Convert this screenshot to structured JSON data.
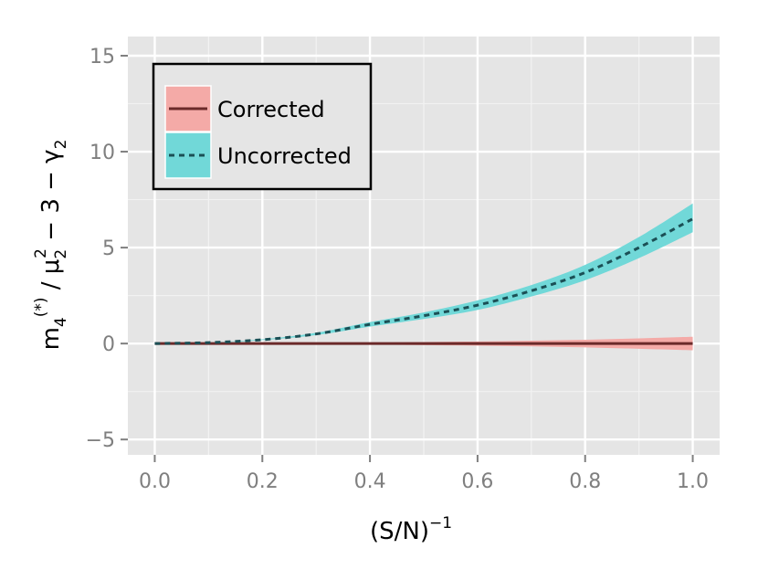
{
  "chart_data": {
    "type": "line",
    "title": "",
    "xlabel": "(S/N)",
    "xlabel_sup": "−1",
    "ylabel": {
      "m": "m",
      "m_sub": "4",
      "m_sup": "(*)",
      "slash": " / ",
      "mu": "μ",
      "mu_sub": "2",
      "mu_sup": "2",
      "rest": " − 3 − ",
      "gamma": "γ",
      "gamma_sub": "2"
    },
    "xlim": [
      -0.05,
      1.05
    ],
    "ylim": [
      -5.8,
      16
    ],
    "x_ticks": [
      0.0,
      0.2,
      0.4,
      0.6,
      0.8,
      1.0
    ],
    "x_tick_labels": [
      "0.0",
      "0.2",
      "0.4",
      "0.6",
      "0.8",
      "1.0"
    ],
    "y_ticks": [
      -5,
      0,
      5,
      10,
      15
    ],
    "y_tick_labels": [
      "−5",
      "0",
      "5",
      "10",
      "15"
    ],
    "grid": true,
    "legend_position": "top-left",
    "x": [
      0.0,
      0.1,
      0.2,
      0.3,
      0.4,
      0.5,
      0.6,
      0.7,
      0.8,
      0.9,
      1.0
    ],
    "series": [
      {
        "name": "Corrected",
        "line_color": "#6b2a2a",
        "band_color": "#f4aaa7",
        "line_style": "solid",
        "values": [
          0,
          0,
          0,
          0,
          0,
          0,
          0,
          0,
          0,
          0,
          0
        ],
        "lower": [
          0,
          -0.01,
          -0.02,
          -0.03,
          -0.05,
          -0.08,
          -0.11,
          -0.15,
          -0.2,
          -0.27,
          -0.35
        ],
        "upper": [
          0,
          0.01,
          0.02,
          0.03,
          0.05,
          0.08,
          0.11,
          0.15,
          0.2,
          0.27,
          0.35
        ]
      },
      {
        "name": "Uncorrected",
        "line_color": "#1b4f55",
        "band_color": "#71d8d8",
        "line_style": "dashed",
        "values": [
          0,
          0.05,
          0.2,
          0.5,
          1.0,
          1.45,
          2.0,
          2.75,
          3.7,
          5.0,
          6.5
        ],
        "lower": [
          0,
          0.04,
          0.18,
          0.44,
          0.88,
          1.28,
          1.75,
          2.45,
          3.3,
          4.45,
          5.8
        ],
        "upper": [
          0,
          0.06,
          0.22,
          0.56,
          1.12,
          1.62,
          2.25,
          3.05,
          4.1,
          5.55,
          7.3
        ]
      }
    ]
  }
}
